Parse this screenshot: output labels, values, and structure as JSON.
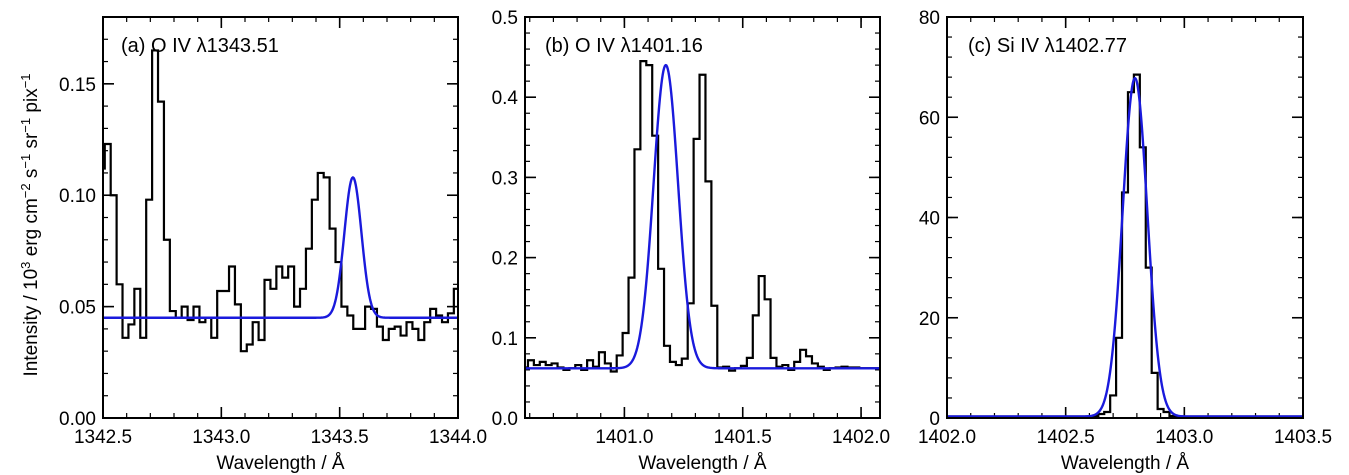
{
  "ylabel": {
    "main": "Intensity / 10",
    "exp1": "3",
    "mid1": " erg cm",
    "exp2": "−2",
    "mid2": " s",
    "exp3": "−1",
    "mid3": " sr",
    "exp4": "−1",
    "mid4": " pix",
    "exp5": "−1"
  },
  "colors": {
    "observed": "#000000",
    "fit": "#1a1adc"
  },
  "chart_data": [
    {
      "type": "line",
      "title": "(a) O IV λ1343.51",
      "xlabel": "Wavelength / Å",
      "xlim": [
        1342.5,
        1344.0
      ],
      "ylim": [
        0.0,
        0.18
      ],
      "xticks": [
        1342.5,
        1343.0,
        1343.5,
        1344.0
      ],
      "xtick_labels": [
        "1342.5",
        "1343.0",
        "1343.5",
        "1344.0"
      ],
      "yticks": [
        0.0,
        0.05,
        0.1,
        0.15
      ],
      "ytick_labels": [
        "0.00",
        "0.05",
        "0.10",
        "0.15"
      ],
      "x_minor_step": 0.1,
      "y_minor_step": 0.01,
      "series": [
        {
          "style": "step",
          "color": "#000000",
          "x": [
            1342.495,
            1342.52,
            1342.545,
            1342.57,
            1342.595,
            1342.62,
            1342.645,
            1342.67,
            1342.695,
            1342.72,
            1342.745,
            1342.77,
            1342.795,
            1342.82,
            1342.845,
            1342.87,
            1342.895,
            1342.92,
            1342.945,
            1342.97,
            1342.995,
            1343.02,
            1343.045,
            1343.07,
            1343.095,
            1343.12,
            1343.145,
            1343.17,
            1343.195,
            1343.22,
            1343.245,
            1343.27,
            1343.295,
            1343.32,
            1343.345,
            1343.37,
            1343.395,
            1343.42,
            1343.445,
            1343.47,
            1343.495,
            1343.52,
            1343.545,
            1343.57,
            1343.595,
            1343.62,
            1343.645,
            1343.67,
            1343.695,
            1343.72,
            1343.745,
            1343.77,
            1343.795,
            1343.82,
            1343.845,
            1343.87,
            1343.895,
            1343.92,
            1343.945,
            1343.97,
            1343.995
          ],
          "y": [
            0.112,
            0.123,
            0.1,
            0.06,
            0.036,
            0.042,
            0.058,
            0.036,
            0.098,
            0.165,
            0.142,
            0.08,
            0.048,
            0.045,
            0.05,
            0.044,
            0.05,
            0.043,
            0.045,
            0.036,
            0.057,
            0.057,
            0.068,
            0.051,
            0.03,
            0.033,
            0.043,
            0.035,
            0.062,
            0.058,
            0.068,
            0.063,
            0.068,
            0.05,
            0.058,
            0.076,
            0.098,
            0.11,
            0.108,
            0.085,
            0.07,
            0.05,
            0.046,
            0.04,
            0.04,
            0.05,
            0.049,
            0.041,
            0.035,
            0.04,
            0.041,
            0.037,
            0.043,
            0.04,
            0.035,
            0.043,
            0.049,
            0.046,
            0.043,
            0.047,
            0.058
          ]
        },
        {
          "style": "fit",
          "color": "#1a1adc",
          "baseline": 0.045,
          "amplitude": 0.063,
          "center": 1343.556,
          "sigma": 0.036
        }
      ]
    },
    {
      "type": "line",
      "title": "(b) O IV λ1401.16",
      "xlabel": "Wavelength / Å",
      "xlim": [
        1400.58,
        1402.08
      ],
      "ylim": [
        0.0,
        0.5
      ],
      "xticks": [
        1401.0,
        1401.5,
        1402.0
      ],
      "xtick_labels": [
        "1401.0",
        "1401.5",
        "1402.0"
      ],
      "yticks": [
        0.0,
        0.1,
        0.2,
        0.3,
        0.4,
        0.5
      ],
      "ytick_labels": [
        "0.0",
        "0.1",
        "0.2",
        "0.3",
        "0.4",
        "0.5"
      ],
      "x_minor_step": 0.1,
      "y_minor_step": 0.02,
      "series": [
        {
          "style": "step",
          "color": "#000000",
          "x": [
            1400.58,
            1400.605,
            1400.63,
            1400.655,
            1400.68,
            1400.705,
            1400.73,
            1400.755,
            1400.78,
            1400.805,
            1400.83,
            1400.855,
            1400.88,
            1400.905,
            1400.93,
            1400.955,
            1400.98,
            1401.005,
            1401.03,
            1401.055,
            1401.08,
            1401.105,
            1401.13,
            1401.155,
            1401.18,
            1401.205,
            1401.23,
            1401.255,
            1401.28,
            1401.305,
            1401.33,
            1401.355,
            1401.38,
            1401.405,
            1401.43,
            1401.455,
            1401.48,
            1401.505,
            1401.53,
            1401.555,
            1401.58,
            1401.605,
            1401.63,
            1401.655,
            1401.68,
            1401.705,
            1401.73,
            1401.755,
            1401.78,
            1401.805,
            1401.83,
            1401.855,
            1401.88,
            1401.905,
            1401.93,
            1401.955,
            1401.98,
            1402.005,
            1402.03,
            1402.055,
            1402.08
          ],
          "y": [
            0.063,
            0.072,
            0.066,
            0.07,
            0.066,
            0.068,
            0.063,
            0.06,
            0.062,
            0.066,
            0.06,
            0.072,
            0.064,
            0.082,
            0.068,
            0.058,
            0.078,
            0.106,
            0.175,
            0.335,
            0.445,
            0.44,
            0.352,
            0.186,
            0.09,
            0.07,
            0.066,
            0.074,
            0.143,
            0.348,
            0.428,
            0.295,
            0.14,
            0.063,
            0.064,
            0.059,
            0.062,
            0.065,
            0.075,
            0.128,
            0.177,
            0.148,
            0.075,
            0.064,
            0.066,
            0.06,
            0.07,
            0.085,
            0.077,
            0.068,
            0.064,
            0.06,
            0.062,
            0.063,
            0.064,
            0.063,
            0.063,
            0.062,
            0.062,
            0.062,
            0.062
          ]
        },
        {
          "style": "fit",
          "color": "#1a1adc",
          "baseline": 0.062,
          "amplitude": 0.378,
          "center": 1401.175,
          "sigma": 0.052
        }
      ]
    },
    {
      "type": "line",
      "title": "(c) Si IV λ1402.77",
      "xlabel": "Wavelength / Å",
      "xlim": [
        1402.0,
        1403.5
      ],
      "ylim": [
        0,
        80
      ],
      "xticks": [
        1402.0,
        1402.5,
        1403.0,
        1403.5
      ],
      "xtick_labels": [
        "1402.0",
        "1402.5",
        "1403.0",
        "1403.5"
      ],
      "yticks": [
        0,
        20,
        40,
        60,
        80
      ],
      "ytick_labels": [
        "0",
        "20",
        "40",
        "60",
        "80"
      ],
      "x_minor_step": 0.1,
      "y_minor_step": 4,
      "series": [
        {
          "style": "step",
          "color": "#000000",
          "x": [
            1402.0,
            1402.025,
            1402.05,
            1402.075,
            1402.1,
            1402.125,
            1402.15,
            1402.175,
            1402.2,
            1402.225,
            1402.25,
            1402.275,
            1402.3,
            1402.325,
            1402.35,
            1402.375,
            1402.4,
            1402.425,
            1402.45,
            1402.475,
            1402.5,
            1402.525,
            1402.55,
            1402.575,
            1402.6,
            1402.625,
            1402.65,
            1402.675,
            1402.7,
            1402.725,
            1402.75,
            1402.775,
            1402.8,
            1402.825,
            1402.85,
            1402.875,
            1402.9,
            1402.925,
            1402.95,
            1402.975,
            1403.0,
            1403.025,
            1403.05,
            1403.075,
            1403.1,
            1403.125,
            1403.15,
            1403.175,
            1403.2,
            1403.225,
            1403.25,
            1403.275,
            1403.3,
            1403.325,
            1403.35,
            1403.375,
            1403.4,
            1403.425,
            1403.45,
            1403.475,
            1403.5
          ],
          "y": [
            0.3,
            0.3,
            0.3,
            0.3,
            0.3,
            0.3,
            0.3,
            0.3,
            0.3,
            0.3,
            0.3,
            0.3,
            0.3,
            0.3,
            0.3,
            0.3,
            0.3,
            0.3,
            0.3,
            0.3,
            0.3,
            0.3,
            0.3,
            0.3,
            0.3,
            0.4,
            0.8,
            1.2,
            4.5,
            16,
            45,
            65,
            68.5,
            54,
            30,
            9,
            1.8,
            1.2,
            0.4,
            0.3,
            0.3,
            0.3,
            0.3,
            0.3,
            0.3,
            0.3,
            0.3,
            0.3,
            0.3,
            0.3,
            0.3,
            0.3,
            0.3,
            0.3,
            0.3,
            0.3,
            0.3,
            0.3,
            0.3,
            0.3,
            0.3
          ]
        },
        {
          "style": "fit",
          "color": "#1a1adc",
          "baseline": 0.3,
          "amplitude": 67.5,
          "center": 1402.792,
          "sigma": 0.052
        }
      ]
    }
  ]
}
